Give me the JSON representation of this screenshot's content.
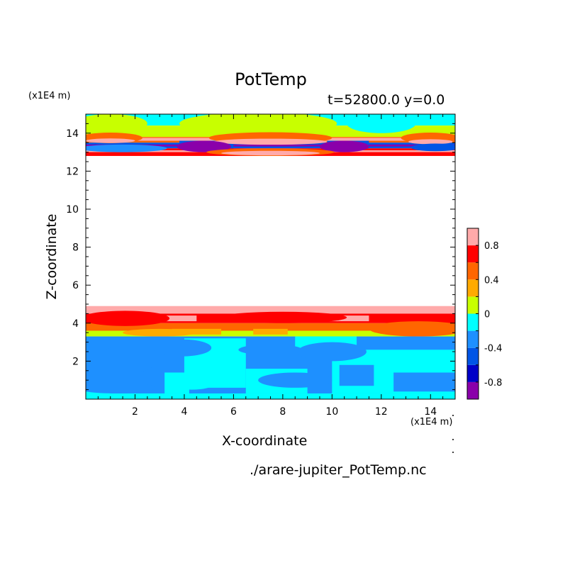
{
  "chart_data": {
    "type": "heatmap",
    "title": "PotTemp",
    "subtitle": "t=52800.0 y=0.0",
    "xlabel": "X-coordinate",
    "ylabel": "Z-coordinate",
    "x_unit": "(x1E4 m)",
    "y_unit": "(x1E4 m)",
    "footer": "./arare-jupiter_PotTemp.nc",
    "xlim": [
      0,
      15
    ],
    "ylim": [
      0,
      15
    ],
    "x_ticks": [
      "2",
      "4",
      "6",
      "8",
      "10",
      "12",
      "14"
    ],
    "y_ticks": [
      "2",
      "4",
      "6",
      "8",
      "10",
      "12",
      "14"
    ],
    "colorbar": {
      "min": -1.0,
      "max": 1.0,
      "levels": [
        -1.0,
        -0.8,
        -0.6,
        -0.4,
        -0.2,
        0.0,
        0.2,
        0.4,
        0.6,
        0.8,
        1.0
      ],
      "colors": [
        "#8a00aa",
        "#0000c8",
        "#0055e6",
        "#1e90ff",
        "#00ffff",
        "#c8ff00",
        "#ffaa00",
        "#ff6600",
        "#ff0000",
        "#ffaaaa"
      ],
      "tick_labels": [
        "0.8",
        "0.4",
        "0",
        "-0.4",
        "-0.8"
      ],
      "tick_values": [
        0.8,
        0.4,
        0.0,
        -0.4,
        -0.8
      ]
    },
    "bands": [
      {
        "z_from": 14.4,
        "z_to": 15.0,
        "value": -0.1
      },
      {
        "z_from": 13.8,
        "z_to": 14.4,
        "value": 0.1
      },
      {
        "z_from": 13.5,
        "z_to": 13.8,
        "value": 0.4
      },
      {
        "z_from": 13.2,
        "z_to": 13.5,
        "value": -0.6
      },
      {
        "z_from": 12.8,
        "z_to": 13.2,
        "value": 0.6
      },
      {
        "z_from": 4.5,
        "z_to": 4.9,
        "value": 0.9
      },
      {
        "z_from": 4.0,
        "z_to": 4.5,
        "value": 0.7
      },
      {
        "z_from": 3.6,
        "z_to": 4.0,
        "value": 0.5
      },
      {
        "z_from": 3.3,
        "z_to": 3.6,
        "value": 0.1
      },
      {
        "z_from": 0.2,
        "z_to": 3.3,
        "value": -0.3
      }
    ],
    "regions": [
      {
        "x_from": 0.0,
        "x_to": 15.0,
        "z_from": 0.0,
        "z_to": 0.3,
        "value": -0.1
      },
      {
        "x_from": 0.0,
        "x_to": 1.0,
        "z_from": 0.3,
        "z_to": 0.6,
        "value": -0.1
      },
      {
        "x_from": 3.2,
        "x_to": 4.2,
        "z_from": 0.3,
        "z_to": 1.4,
        "value": -0.1
      },
      {
        "x_from": 4.0,
        "x_to": 6.5,
        "z_from": 0.6,
        "z_to": 3.2,
        "value": -0.1
      },
      {
        "x_from": 6.5,
        "x_to": 9.0,
        "z_from": 0.3,
        "z_to": 1.6,
        "value": -0.1
      },
      {
        "x_from": 10.0,
        "x_to": 15.0,
        "z_from": 0.3,
        "z_to": 2.6,
        "value": -0.1
      },
      {
        "x_from": 8.5,
        "x_to": 11.0,
        "z_from": 2.6,
        "z_to": 3.3,
        "value": -0.1
      },
      {
        "x_from": 10.3,
        "x_to": 11.7,
        "z_from": 0.7,
        "z_to": 1.8,
        "value": -0.3
      },
      {
        "x_from": 12.5,
        "x_to": 15.0,
        "z_from": 0.4,
        "z_to": 1.4,
        "value": -0.3
      },
      {
        "x_from": 0.0,
        "x_to": 15.0,
        "z_from": 13.6,
        "z_to": 13.75,
        "value": 0.8
      },
      {
        "x_from": 0.0,
        "x_to": 15.0,
        "z_from": 13.3,
        "z_to": 13.4,
        "value": -0.9
      },
      {
        "x_from": 0.0,
        "x_to": 15.0,
        "z_from": 13.0,
        "z_to": 13.1,
        "value": 0.9
      },
      {
        "x_from": 3.8,
        "x_to": 6.0,
        "z_from": 13.2,
        "z_to": 13.6,
        "value": -0.5
      },
      {
        "x_from": 9.8,
        "x_to": 11.5,
        "z_from": 13.2,
        "z_to": 13.6,
        "value": -0.5
      },
      {
        "x_from": 2.5,
        "x_to": 4.5,
        "z_from": 4.1,
        "z_to": 4.4,
        "value": 0.8
      },
      {
        "x_from": 9.5,
        "x_to": 11.5,
        "z_from": 4.1,
        "z_to": 4.4,
        "value": 0.8
      },
      {
        "x_from": 3.5,
        "x_to": 5.5,
        "z_from": 3.4,
        "z_to": 3.7,
        "value": 0.3
      },
      {
        "x_from": 6.8,
        "x_to": 8.2,
        "z_from": 3.4,
        "z_to": 3.7,
        "value": 0.3
      }
    ],
    "blobs": [
      {
        "x": 1.0,
        "z": 14.5,
        "rx": 1.5,
        "rz": 0.5,
        "value": 0.1
      },
      {
        "x": 7.0,
        "z": 14.5,
        "rx": 3.2,
        "rz": 0.6,
        "value": 0.1
      },
      {
        "x": 12.0,
        "z": 14.5,
        "rx": 1.4,
        "rz": 0.5,
        "value": -0.1
      },
      {
        "x": 1.0,
        "z": 13.75,
        "rx": 1.3,
        "rz": 0.28,
        "value": 0.5
      },
      {
        "x": 7.5,
        "z": 13.75,
        "rx": 2.5,
        "rz": 0.3,
        "value": 0.5
      },
      {
        "x": 14.0,
        "z": 13.75,
        "rx": 1.2,
        "rz": 0.28,
        "value": 0.5
      },
      {
        "x": 1.0,
        "z": 13.6,
        "rx": 1.0,
        "rz": 0.12,
        "value": 1.0
      },
      {
        "x": 7.5,
        "z": 13.55,
        "rx": 2.3,
        "rz": 0.16,
        "value": 1.0
      },
      {
        "x": 14.0,
        "z": 13.55,
        "rx": 0.9,
        "rz": 0.13,
        "value": 1.0
      },
      {
        "x": 1.5,
        "z": 13.2,
        "rx": 1.8,
        "rz": 0.2,
        "value": -0.3
      },
      {
        "x": 4.8,
        "z": 13.3,
        "rx": 1.1,
        "rz": 0.3,
        "value": -0.9
      },
      {
        "x": 10.5,
        "z": 13.3,
        "rx": 1.0,
        "rz": 0.3,
        "value": -0.9
      },
      {
        "x": 14.2,
        "z": 13.25,
        "rx": 1.0,
        "rz": 0.2,
        "value": -0.5
      },
      {
        "x": 7.5,
        "z": 13.0,
        "rx": 2.6,
        "rz": 0.2,
        "value": 0.4
      },
      {
        "x": 7.5,
        "z": 12.95,
        "rx": 2.0,
        "rz": 0.12,
        "value": 1.0
      },
      {
        "x": 1.6,
        "z": 4.25,
        "rx": 1.8,
        "rz": 0.4,
        "value": 0.7
      },
      {
        "x": 8.0,
        "z": 4.3,
        "rx": 2.6,
        "rz": 0.3,
        "value": 0.7
      },
      {
        "x": 13.5,
        "z": 3.7,
        "rx": 2.0,
        "rz": 0.4,
        "value": 0.5
      },
      {
        "x": 3.0,
        "z": 3.5,
        "rx": 1.5,
        "rz": 0.2,
        "value": 0.3
      },
      {
        "x": 1.7,
        "z": 2.1,
        "rx": 1.2,
        "rz": 0.75,
        "value": -0.3
      },
      {
        "x": 3.9,
        "z": 2.7,
        "rx": 1.2,
        "rz": 0.45,
        "value": -0.3
      },
      {
        "x": 7.5,
        "z": 2.6,
        "rx": 1.3,
        "rz": 0.28,
        "value": -0.3
      },
      {
        "x": 10.0,
        "z": 2.5,
        "rx": 1.4,
        "rz": 0.5,
        "value": -0.3
      },
      {
        "x": 1.2,
        "z": 0.6,
        "rx": 1.6,
        "rz": 0.3,
        "value": -0.3
      },
      {
        "x": 8.5,
        "z": 1.0,
        "rx": 1.5,
        "rz": 0.4,
        "value": -0.3
      },
      {
        "x": 4.3,
        "z": 0.8,
        "rx": 0.9,
        "rz": 0.3,
        "value": -0.1
      },
      {
        "x": 13.0,
        "z": 3.0,
        "rx": 1.8,
        "rz": 0.3,
        "value": -0.3
      }
    ]
  }
}
